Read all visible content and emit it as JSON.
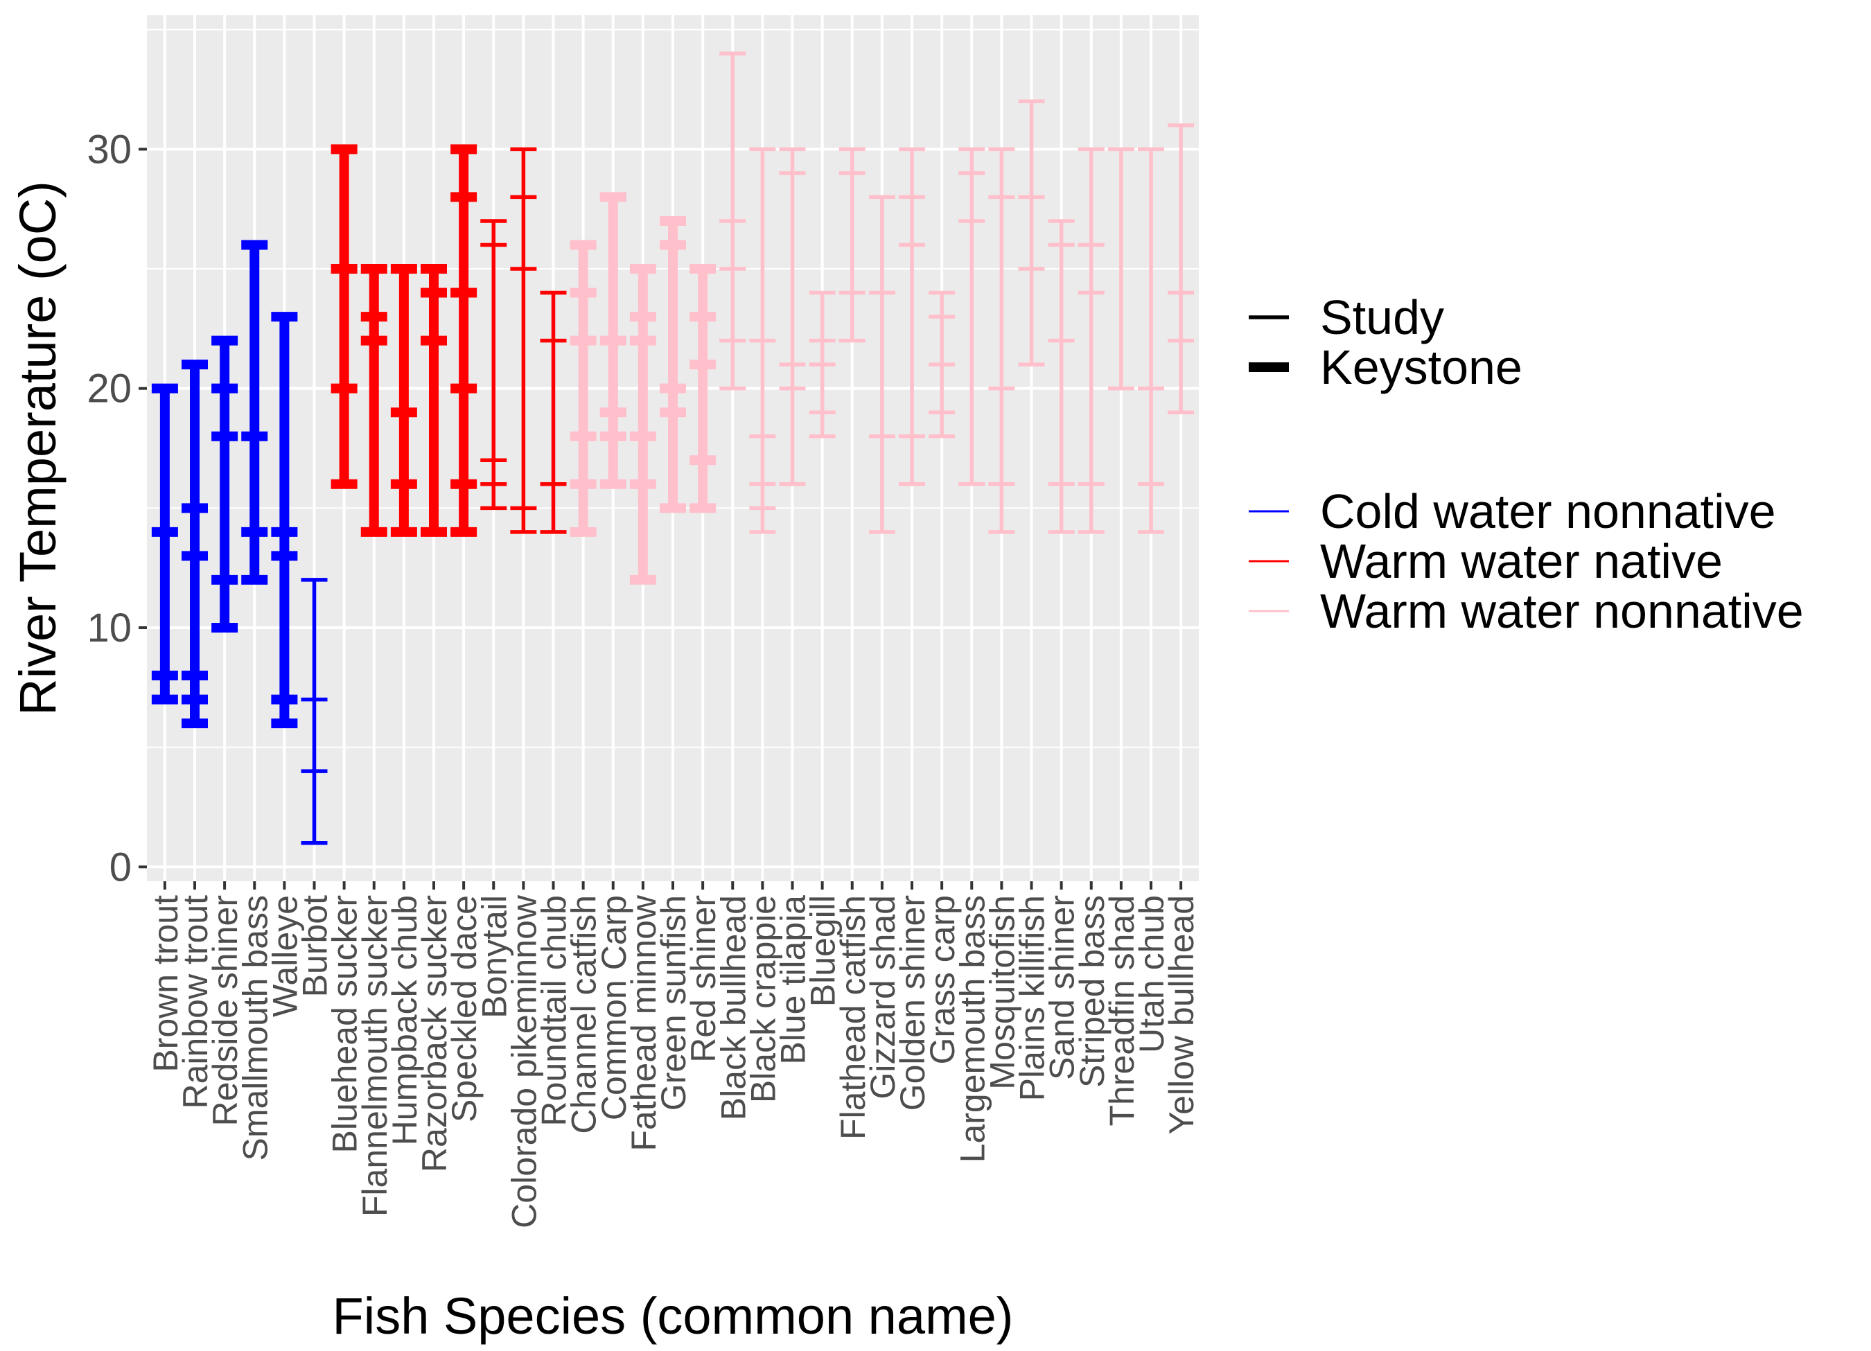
{
  "chart_data": {
    "type": "errorbar",
    "xlabel": "Fish Species (common name)",
    "ylabel": "River Temperature (oC)",
    "ylim": [
      -0.6,
      35.6
    ],
    "yticks": [
      0,
      10,
      20,
      30
    ],
    "grid": true,
    "legend_position": "right",
    "legend": {
      "linetype": [
        {
          "label": "Study",
          "key": "study"
        },
        {
          "label": "Keystone",
          "key": "keystone"
        }
      ],
      "groups": [
        {
          "label": "Cold water nonnative",
          "key": "cold_nonnative",
          "color": "#0000FF"
        },
        {
          "label": "Warm water native",
          "key": "warm_native",
          "color": "#FF0000"
        },
        {
          "label": "Warm water nonnative",
          "key": "warm_nonnative",
          "color": "#FFC0CB"
        }
      ]
    },
    "categories": [
      "Brown trout",
      "Rainbow trout",
      "Redside shiner",
      "Smallmouth bass",
      "Walleye",
      "Burbot",
      "Bluehead sucker",
      "Flannelmouth sucker",
      "Humpback chub",
      "Razorback sucker",
      "Speckled dace",
      "Bonytail",
      "Colorado pikeminnow",
      "Roundtail chub",
      "Channel catfish",
      "Common Carp",
      "Fathead minnow",
      "Green sunfish",
      "Red shiner",
      "Black bullhead",
      "Black crappie",
      "Blue tilapia",
      "Bluegill",
      "Flathead catfish",
      "Gizzard shad",
      "Golden shiner",
      "Grass carp",
      "Largemouth bass",
      "Mosquitofish",
      "Plains killifish",
      "Sand shiner",
      "Striped bass",
      "Threadfin shad",
      "Utah chub",
      "Yellow bullhead"
    ],
    "species": [
      {
        "name": "Brown trout",
        "group": "cold_nonnative",
        "thick": true,
        "min": 7,
        "max": 20,
        "ticks": [
          7,
          8,
          14,
          20
        ]
      },
      {
        "name": "Rainbow trout",
        "group": "cold_nonnative",
        "thick": true,
        "min": 6,
        "max": 21,
        "ticks": [
          6,
          7,
          8,
          13,
          15,
          21
        ]
      },
      {
        "name": "Redside shiner",
        "group": "cold_nonnative",
        "thick": true,
        "min": 10,
        "max": 22,
        "ticks": [
          10,
          12,
          18,
          20,
          22
        ]
      },
      {
        "name": "Smallmouth bass",
        "group": "cold_nonnative",
        "thick": true,
        "min": 12,
        "max": 26,
        "ticks": [
          12,
          14,
          18,
          26
        ]
      },
      {
        "name": "Walleye",
        "group": "cold_nonnative",
        "thick": true,
        "min": 6,
        "max": 23,
        "ticks": [
          6,
          7,
          13,
          14,
          23
        ]
      },
      {
        "name": "Burbot",
        "group": "cold_nonnative",
        "thick": false,
        "min": 1,
        "max": 12,
        "ticks": [
          1,
          4,
          7,
          12
        ]
      },
      {
        "name": "Bluehead sucker",
        "group": "warm_native",
        "thick": true,
        "min": 16,
        "max": 30,
        "ticks": [
          16,
          20,
          25,
          30
        ]
      },
      {
        "name": "Flannelmouth sucker",
        "group": "warm_native",
        "thick": true,
        "min": 14,
        "max": 25,
        "ticks": [
          14,
          22,
          23,
          25
        ]
      },
      {
        "name": "Humpback chub",
        "group": "warm_native",
        "thick": true,
        "min": 14,
        "max": 25,
        "ticks": [
          14,
          16,
          19,
          25
        ]
      },
      {
        "name": "Razorback sucker",
        "group": "warm_native",
        "thick": true,
        "min": 14,
        "max": 25,
        "ticks": [
          14,
          22,
          24,
          25
        ]
      },
      {
        "name": "Speckled dace",
        "group": "warm_native",
        "thick": true,
        "min": 14,
        "max": 30,
        "ticks": [
          14,
          16,
          20,
          24,
          28,
          30
        ]
      },
      {
        "name": "Bonytail",
        "group": "warm_native",
        "thick": false,
        "min": 15,
        "max": 27,
        "ticks": [
          15,
          16,
          17,
          26,
          27
        ]
      },
      {
        "name": "Colorado pikeminnow",
        "group": "warm_native",
        "thick": false,
        "min": 14,
        "max": 30,
        "ticks": [
          14,
          15,
          25,
          28,
          30
        ]
      },
      {
        "name": "Roundtail chub",
        "group": "warm_native",
        "thick": false,
        "min": 14,
        "max": 24,
        "ticks": [
          14,
          16,
          22,
          24
        ]
      },
      {
        "name": "Channel catfish",
        "group": "warm_nonnative",
        "thick": true,
        "min": 14,
        "max": 26,
        "ticks": [
          14,
          16,
          18,
          22,
          24,
          26
        ]
      },
      {
        "name": "Common Carp",
        "group": "warm_nonnative",
        "thick": true,
        "min": 16,
        "max": 28,
        "ticks": [
          16,
          18,
          19,
          22,
          28
        ]
      },
      {
        "name": "Fathead minnow",
        "group": "warm_nonnative",
        "thick": true,
        "min": 12,
        "max": 25,
        "ticks": [
          12,
          16,
          18,
          22,
          23,
          25
        ]
      },
      {
        "name": "Green sunfish",
        "group": "warm_nonnative",
        "thick": true,
        "min": 15,
        "max": 27,
        "ticks": [
          15,
          19,
          20,
          26,
          27
        ]
      },
      {
        "name": "Red shiner",
        "group": "warm_nonnative",
        "thick": true,
        "min": 15,
        "max": 25,
        "ticks": [
          15,
          17,
          21,
          23,
          25
        ]
      },
      {
        "name": "Black bullhead",
        "group": "warm_nonnative",
        "thick": false,
        "min": 20,
        "max": 34,
        "ticks": [
          20,
          22,
          25,
          27,
          34
        ]
      },
      {
        "name": "Black crappie",
        "group": "warm_nonnative",
        "thick": false,
        "min": 14,
        "max": 30,
        "ticks": [
          14,
          15,
          16,
          18,
          22,
          30
        ]
      },
      {
        "name": "Blue tilapia",
        "group": "warm_nonnative",
        "thick": false,
        "min": 16,
        "max": 30,
        "ticks": [
          16,
          20,
          21,
          29,
          30
        ]
      },
      {
        "name": "Bluegill",
        "group": "warm_nonnative",
        "thick": false,
        "min": 18,
        "max": 24,
        "ticks": [
          18,
          19,
          21,
          22,
          24
        ]
      },
      {
        "name": "Flathead catfish",
        "group": "warm_nonnative",
        "thick": false,
        "min": 22,
        "max": 30,
        "ticks": [
          22,
          24,
          29,
          30
        ]
      },
      {
        "name": "Gizzard shad",
        "group": "warm_nonnative",
        "thick": false,
        "min": 14,
        "max": 28,
        "ticks": [
          14,
          18,
          24,
          28
        ]
      },
      {
        "name": "Golden shiner",
        "group": "warm_nonnative",
        "thick": false,
        "min": 16,
        "max": 30,
        "ticks": [
          16,
          18,
          26,
          28,
          30
        ]
      },
      {
        "name": "Grass carp",
        "group": "warm_nonnative",
        "thick": false,
        "min": 18,
        "max": 24,
        "ticks": [
          18,
          19,
          21,
          23,
          24
        ]
      },
      {
        "name": "Largemouth bass",
        "group": "warm_nonnative",
        "thick": false,
        "min": 16,
        "max": 30,
        "ticks": [
          16,
          27,
          29,
          30
        ]
      },
      {
        "name": "Mosquitofish",
        "group": "warm_nonnative",
        "thick": false,
        "min": 14,
        "max": 30,
        "ticks": [
          14,
          16,
          20,
          28,
          30
        ]
      },
      {
        "name": "Plains killifish",
        "group": "warm_nonnative",
        "thick": false,
        "min": 21,
        "max": 32,
        "ticks": [
          21,
          25,
          28,
          32
        ]
      },
      {
        "name": "Sand shiner",
        "group": "warm_nonnative",
        "thick": false,
        "min": 14,
        "max": 27,
        "ticks": [
          14,
          16,
          22,
          26,
          27
        ]
      },
      {
        "name": "Striped bass",
        "group": "warm_nonnative",
        "thick": false,
        "min": 14,
        "max": 30,
        "ticks": [
          14,
          16,
          24,
          26,
          30
        ]
      },
      {
        "name": "Threadfin shad",
        "group": "warm_nonnative",
        "thick": false,
        "min": 20,
        "max": 30,
        "ticks": [
          20,
          30
        ]
      },
      {
        "name": "Utah chub",
        "group": "warm_nonnative",
        "thick": false,
        "min": 14,
        "max": 30,
        "ticks": [
          14,
          16,
          20,
          30
        ]
      },
      {
        "name": "Yellow bullhead",
        "group": "warm_nonnative",
        "thick": false,
        "min": 19,
        "max": 31,
        "ticks": [
          19,
          22,
          24,
          31
        ]
      }
    ]
  }
}
